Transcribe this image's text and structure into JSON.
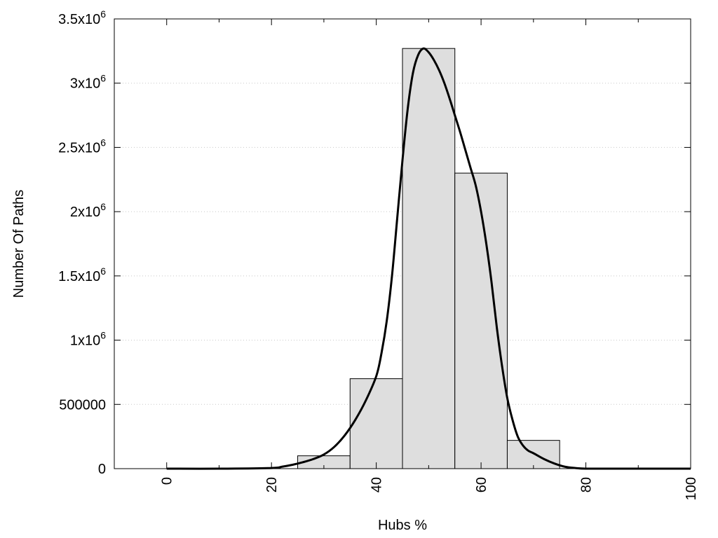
{
  "chart_data": {
    "type": "bar",
    "title": "",
    "xlabel": "Hubs %",
    "ylabel": "Number Of Paths",
    "xlim": [
      -10,
      100
    ],
    "ylim": [
      0,
      3500000
    ],
    "grid": "horizontal dotted",
    "legend": "none",
    "x_ticks": [
      {
        "value": 0,
        "label": "0"
      },
      {
        "value": 20,
        "label": "20"
      },
      {
        "value": 40,
        "label": "40"
      },
      {
        "value": 60,
        "label": "60"
      },
      {
        "value": 80,
        "label": "80"
      },
      {
        "value": 100,
        "label": "100"
      }
    ],
    "y_ticks": [
      {
        "value": 0,
        "base": "0",
        "exp": ""
      },
      {
        "value": 500000,
        "base": "500000",
        "exp": ""
      },
      {
        "value": 1000000,
        "base": "1x10",
        "exp": "6"
      },
      {
        "value": 1500000,
        "base": "1.5x10",
        "exp": "6"
      },
      {
        "value": 2000000,
        "base": "2x10",
        "exp": "6"
      },
      {
        "value": 2500000,
        "base": "2.5x10",
        "exp": "6"
      },
      {
        "value": 3000000,
        "base": "3x10",
        "exp": "6"
      },
      {
        "value": 3500000,
        "base": "3.5x10",
        "exp": "6"
      }
    ],
    "histogram": {
      "bin_width": 10,
      "bins": [
        {
          "center": 0,
          "value": 0
        },
        {
          "center": 10,
          "value": 0
        },
        {
          "center": 20,
          "value": 0
        },
        {
          "center": 30,
          "value": 100000
        },
        {
          "center": 40,
          "value": 700000
        },
        {
          "center": 50,
          "value": 3270000
        },
        {
          "center": 60,
          "value": 2300000
        },
        {
          "center": 70,
          "value": 220000
        },
        {
          "center": 80,
          "value": 0
        },
        {
          "center": 90,
          "value": 0
        }
      ]
    },
    "curve": {
      "x": [
        0,
        10,
        20,
        22,
        24,
        26,
        28,
        30,
        32,
        34,
        36,
        38,
        40,
        41,
        42,
        43,
        44,
        45,
        46,
        47,
        48,
        49,
        50,
        51,
        52,
        53,
        54,
        55,
        56,
        57,
        58,
        59,
        60,
        61,
        62,
        63,
        64,
        65,
        66,
        67,
        68,
        69,
        70,
        72,
        74,
        76,
        78,
        80,
        85,
        90,
        100
      ],
      "y": [
        0,
        0,
        5000,
        15000,
        30000,
        50000,
        75000,
        110000,
        170000,
        260000,
        380000,
        530000,
        720000,
        900000,
        1150000,
        1500000,
        1950000,
        2400000,
        2800000,
        3080000,
        3220000,
        3270000,
        3240000,
        3180000,
        3100000,
        3000000,
        2880000,
        2750000,
        2620000,
        2480000,
        2340000,
        2200000,
        2000000,
        1750000,
        1450000,
        1100000,
        800000,
        550000,
        380000,
        250000,
        180000,
        140000,
        120000,
        75000,
        40000,
        15000,
        5000,
        0,
        0,
        0,
        0
      ]
    }
  }
}
